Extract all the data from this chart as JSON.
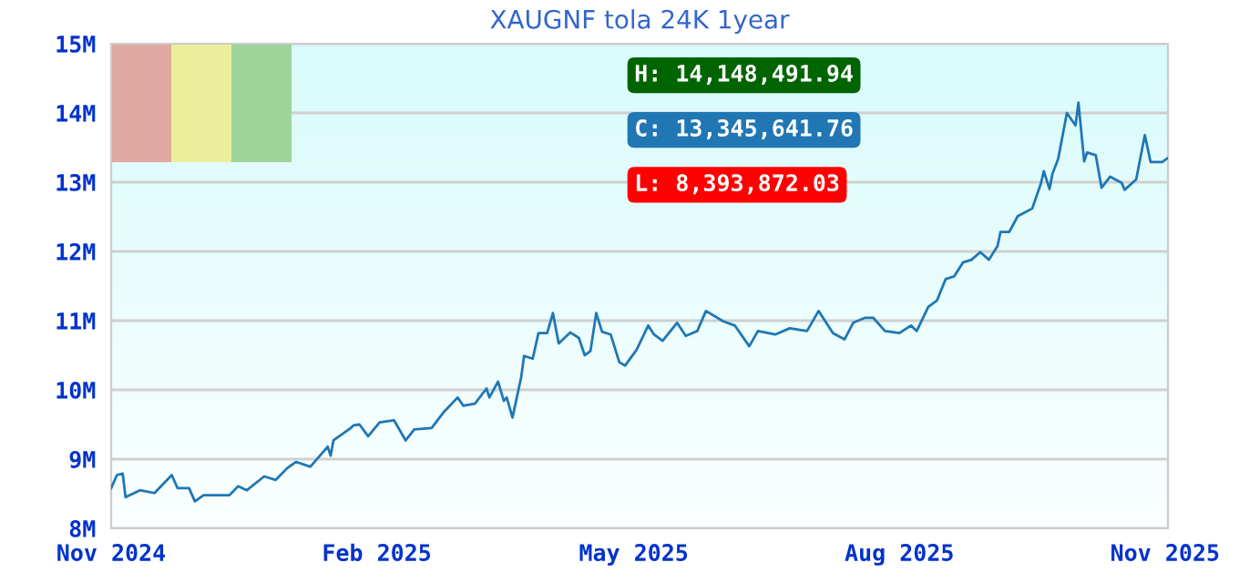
{
  "chart_data": {
    "type": "line",
    "title": "XAUGNF tola 24K 1year",
    "x": [
      "2024-11-01",
      "2024-11-03",
      "2024-11-05",
      "2024-11-06",
      "2024-11-11",
      "2024-11-16",
      "2024-11-22",
      "2024-11-24",
      "2024-11-28",
      "2024-11-30",
      "2024-12-03",
      "2024-12-12",
      "2024-12-15",
      "2024-12-18",
      "2024-12-24",
      "2024-12-28",
      "2025-01-01",
      "2025-01-04",
      "2025-01-09",
      "2025-01-15",
      "2025-01-16",
      "2025-01-17",
      "2025-01-23",
      "2025-01-24",
      "2025-01-26",
      "2025-01-29",
      "2025-02-02",
      "2025-02-07",
      "2025-02-11",
      "2025-02-14",
      "2025-02-20",
      "2025-02-24",
      "2025-03-01",
      "2025-03-03",
      "2025-03-07",
      "2025-03-11",
      "2025-03-12",
      "2025-03-15",
      "2025-03-17",
      "2025-03-18",
      "2025-03-20",
      "2025-03-23",
      "2025-03-24",
      "2025-03-27",
      "2025-03-29",
      "2025-04-01",
      "2025-04-03",
      "2025-04-05",
      "2025-04-09",
      "2025-04-12",
      "2025-04-14",
      "2025-04-16",
      "2025-04-18",
      "2025-04-20",
      "2025-04-23",
      "2025-04-26",
      "2025-04-28",
      "2025-05-02",
      "2025-05-06",
      "2025-05-08",
      "2025-05-11",
      "2025-05-16",
      "2025-05-19",
      "2025-05-23",
      "2025-05-26",
      "2025-06-01",
      "2025-06-05",
      "2025-06-10",
      "2025-06-13",
      "2025-06-19",
      "2025-06-24",
      "2025-06-30",
      "2025-07-04",
      "2025-07-09",
      "2025-07-13",
      "2025-07-16",
      "2025-07-20",
      "2025-07-23",
      "2025-07-27",
      "2025-08-01",
      "2025-08-05",
      "2025-08-07",
      "2025-08-11",
      "2025-08-14",
      "2025-08-17",
      "2025-08-20",
      "2025-08-23",
      "2025-08-26",
      "2025-08-29",
      "2025-09-01",
      "2025-09-04",
      "2025-09-05",
      "2025-09-08",
      "2025-09-11",
      "2025-09-16",
      "2025-09-19",
      "2025-09-20",
      "2025-09-22",
      "2025-09-23",
      "2025-09-25",
      "2025-09-28",
      "2025-10-01",
      "2025-10-02",
      "2025-10-04",
      "2025-10-05",
      "2025-10-08",
      "2025-10-10",
      "2025-10-13",
      "2025-10-17",
      "2025-10-18",
      "2025-10-22",
      "2025-10-25",
      "2025-10-27",
      "2025-10-31",
      "2025-11-02"
    ],
    "series": [
      {
        "color": "#1f77b4",
        "values": [
          8.58,
          8.77,
          8.79,
          8.45,
          8.55,
          8.51,
          8.77,
          8.58,
          8.58,
          8.39,
          8.48,
          8.48,
          8.61,
          8.55,
          8.75,
          8.7,
          8.87,
          8.96,
          8.89,
          9.18,
          9.05,
          9.27,
          9.45,
          9.49,
          9.5,
          9.33,
          9.53,
          9.56,
          9.27,
          9.43,
          9.45,
          9.67,
          9.89,
          9.77,
          9.8,
          10.02,
          9.89,
          10.12,
          9.84,
          9.89,
          9.6,
          10.18,
          10.49,
          10.45,
          10.82,
          10.82,
          11.11,
          10.67,
          10.83,
          10.75,
          10.5,
          10.56,
          11.11,
          10.84,
          10.8,
          10.4,
          10.35,
          10.58,
          10.93,
          10.8,
          10.71,
          10.97,
          10.78,
          10.85,
          11.14,
          10.99,
          10.93,
          10.63,
          10.85,
          10.8,
          10.89,
          10.85,
          11.14,
          10.82,
          10.73,
          10.97,
          11.04,
          11.04,
          10.85,
          10.82,
          10.93,
          10.85,
          11.2,
          11.29,
          11.6,
          11.64,
          11.84,
          11.88,
          11.99,
          11.88,
          12.08,
          12.28,
          12.28,
          12.51,
          12.62,
          12.98,
          13.16,
          12.9,
          13.12,
          13.34,
          14.0,
          13.82,
          14.15,
          13.3,
          13.43,
          13.39,
          12.92,
          13.08,
          12.99,
          12.89,
          13.04,
          13.68,
          13.29,
          13.29,
          13.35
        ]
      }
    ],
    "xlim": [
      "2024-11-01",
      "2025-11-02"
    ],
    "xticks": [
      {
        "value": "2024-11-01",
        "label": "Nov 2024"
      },
      {
        "value": "2025-02-01",
        "label": "Feb 2025"
      },
      {
        "value": "2025-05-01",
        "label": "May 2025"
      },
      {
        "value": "2025-08-01",
        "label": "Aug 2025"
      },
      {
        "value": "2025-11-01",
        "label": "Nov 2025"
      }
    ],
    "ylim": [
      8,
      15
    ],
    "yticks": [
      {
        "value": 8,
        "label": "8M"
      },
      {
        "value": 9,
        "label": "9M"
      },
      {
        "value": 10,
        "label": "10M"
      },
      {
        "value": 11,
        "label": "11M"
      },
      {
        "value": 12,
        "label": "12M"
      },
      {
        "value": 13,
        "label": "13M"
      },
      {
        "value": 14,
        "label": "14M"
      },
      {
        "value": 15,
        "label": "15M"
      }
    ],
    "grid": "y",
    "marker": "none",
    "line_style": "solid",
    "legend": false,
    "annotations": [
      "H: 14,148,491.94",
      "C: 13,345,641.76",
      "L: 8,393,872.03"
    ]
  }
}
